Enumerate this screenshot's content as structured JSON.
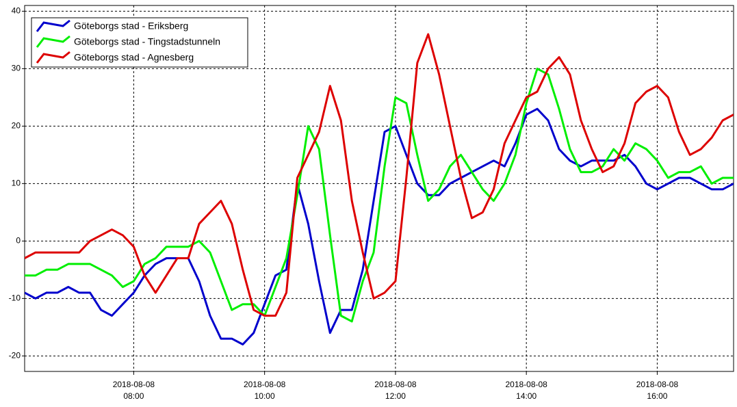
{
  "chart_data": {
    "type": "line",
    "x": [
      "2018-08-08 06:20",
      "2018-08-08 06:30",
      "2018-08-08 06:40",
      "2018-08-08 06:50",
      "2018-08-08 07:00",
      "2018-08-08 07:10",
      "2018-08-08 07:20",
      "2018-08-08 07:30",
      "2018-08-08 07:40",
      "2018-08-08 07:50",
      "2018-08-08 08:00",
      "2018-08-08 08:10",
      "2018-08-08 08:20",
      "2018-08-08 08:30",
      "2018-08-08 08:40",
      "2018-08-08 08:50",
      "2018-08-08 09:00",
      "2018-08-08 09:10",
      "2018-08-08 09:20",
      "2018-08-08 09:30",
      "2018-08-08 09:40",
      "2018-08-08 09:50",
      "2018-08-08 10:00",
      "2018-08-08 10:10",
      "2018-08-08 10:20",
      "2018-08-08 10:30",
      "2018-08-08 10:40",
      "2018-08-08 10:50",
      "2018-08-08 11:00",
      "2018-08-08 11:10",
      "2018-08-08 11:20",
      "2018-08-08 11:30",
      "2018-08-08 11:40",
      "2018-08-08 11:50",
      "2018-08-08 12:00",
      "2018-08-08 12:10",
      "2018-08-08 12:20",
      "2018-08-08 12:30",
      "2018-08-08 12:40",
      "2018-08-08 12:50",
      "2018-08-08 13:00",
      "2018-08-08 13:10",
      "2018-08-08 13:20",
      "2018-08-08 13:30",
      "2018-08-08 13:40",
      "2018-08-08 13:50",
      "2018-08-08 14:00",
      "2018-08-08 14:10",
      "2018-08-08 14:20",
      "2018-08-08 14:30",
      "2018-08-08 14:40",
      "2018-08-08 14:50",
      "2018-08-08 15:00",
      "2018-08-08 15:10",
      "2018-08-08 15:20",
      "2018-08-08 15:30",
      "2018-08-08 15:40",
      "2018-08-08 15:50",
      "2018-08-08 16:00",
      "2018-08-08 16:10",
      "2018-08-08 16:20",
      "2018-08-08 16:30",
      "2018-08-08 16:40",
      "2018-08-08 16:50",
      "2018-08-08 17:00",
      "2018-08-08 17:10"
    ],
    "series": [
      {
        "name": "Göteborgs stad - Eriksberg",
        "color": "#0000cc",
        "values": [
          -9,
          -10,
          -9,
          -9,
          -8,
          -9,
          -9,
          -12,
          -13,
          -11,
          -9,
          -6,
          -4,
          -3,
          -3,
          -3,
          -7,
          -13,
          -17,
          -17,
          -18,
          -16,
          -11,
          -6,
          -5,
          10,
          3,
          -7,
          -16,
          -12,
          -12,
          -5,
          7,
          19,
          20,
          15,
          10,
          8,
          8,
          10,
          11,
          12,
          13,
          14,
          13,
          17,
          22,
          23,
          21,
          16,
          14,
          13,
          14,
          14,
          14,
          15,
          13,
          10,
          9,
          10,
          11,
          11,
          10,
          9,
          9,
          10
        ]
      },
      {
        "name": "Göteborgs stad - Tingstadstunneln",
        "color": "#00ee00",
        "values": [
          -6,
          -6,
          -5,
          -5,
          -4,
          -4,
          -4,
          -5,
          -6,
          -8,
          -7,
          -4,
          -3,
          -1,
          -1,
          -1,
          0,
          -2,
          -7,
          -12,
          -11,
          -11,
          -13,
          -8,
          -3,
          8,
          20,
          16,
          1,
          -13,
          -14,
          -7,
          -2,
          13,
          25,
          24,
          15,
          7,
          9,
          13,
          15,
          12,
          9,
          7,
          10,
          15,
          24,
          30,
          29,
          23,
          16,
          12,
          12,
          13,
          16,
          14,
          17,
          16,
          14,
          11,
          12,
          12,
          13,
          10,
          11,
          11
        ]
      },
      {
        "name": "Göteborgs stad - Agnesberg",
        "color": "#dd0000",
        "values": [
          -3,
          -2,
          -2,
          -2,
          -2,
          -2,
          0,
          1,
          2,
          1,
          -1,
          -6,
          -9,
          -6,
          -3,
          -3,
          3,
          5,
          7,
          3,
          -5,
          -12,
          -13,
          -13,
          -9,
          11,
          15,
          19,
          27,
          21,
          7,
          -2,
          -10,
          -9,
          -7,
          11,
          31,
          36,
          29,
          20,
          11,
          4,
          5,
          9,
          17,
          21,
          25,
          26,
          30,
          32,
          29,
          21,
          16,
          12,
          13,
          17,
          24,
          26,
          27,
          25,
          19,
          15,
          16,
          18,
          21,
          22
        ]
      }
    ],
    "xlim": [
      "2018-08-08 06:20",
      "2018-08-08 17:10"
    ],
    "xticks": [
      {
        "value": "2018-08-08 08:00",
        "label": [
          "2018-08-08",
          "08:00"
        ]
      },
      {
        "value": "2018-08-08 10:00",
        "label": [
          "2018-08-08",
          "10:00"
        ]
      },
      {
        "value": "2018-08-08 12:00",
        "label": [
          "2018-08-08",
          "12:00"
        ]
      },
      {
        "value": "2018-08-08 14:00",
        "label": [
          "2018-08-08",
          "14:00"
        ]
      },
      {
        "value": "2018-08-08 16:00",
        "label": [
          "2018-08-08",
          "16:00"
        ]
      }
    ],
    "ylim": [
      -22.7,
      41
    ],
    "yticks": [
      -20,
      -10,
      0,
      10,
      20,
      30,
      40
    ],
    "grid": true,
    "legend": "top-left"
  }
}
